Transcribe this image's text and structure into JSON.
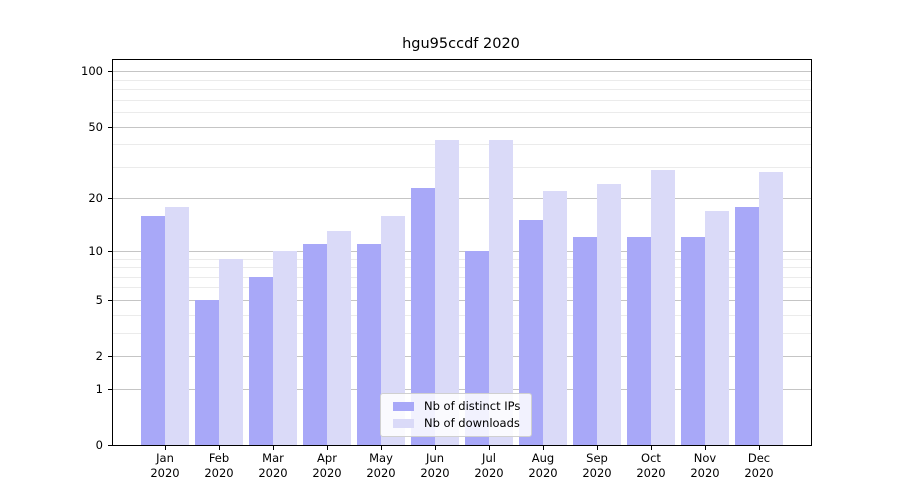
{
  "title": "hgu95ccdf 2020",
  "chart_data": {
    "type": "bar",
    "title": "hgu95ccdf 2020",
    "categories": [
      "Jan",
      "Feb",
      "Mar",
      "Apr",
      "May",
      "Jun",
      "Jul",
      "Aug",
      "Sep",
      "Oct",
      "Nov",
      "Dec"
    ],
    "year_label": "2020",
    "series": [
      {
        "name": "Nb of distinct IPs",
        "color": "#a8a8f8",
        "values": [
          16,
          5,
          7,
          11,
          11,
          23,
          10,
          15,
          12,
          12,
          12,
          18
        ]
      },
      {
        "name": "Nb of downloads",
        "color": "#dadaf8",
        "values": [
          18,
          9,
          10,
          13,
          16,
          42,
          42,
          22,
          24,
          29,
          17,
          28
        ]
      }
    ],
    "yscale": "log1p",
    "yticks": [
      0,
      1,
      2,
      5,
      10,
      20,
      50,
      100
    ],
    "minor_yticks": [
      3,
      4,
      6,
      7,
      8,
      9,
      30,
      40,
      60,
      70,
      80,
      90
    ],
    "ylim": [
      0,
      115
    ],
    "xlabel": "",
    "ylabel": "",
    "grid": true,
    "legend_position": "lower center",
    "grid_major_color": "#c5c5c5",
    "grid_minor_color": "#ebebeb",
    "spine_color": "#000000",
    "text_color": "#000000"
  }
}
